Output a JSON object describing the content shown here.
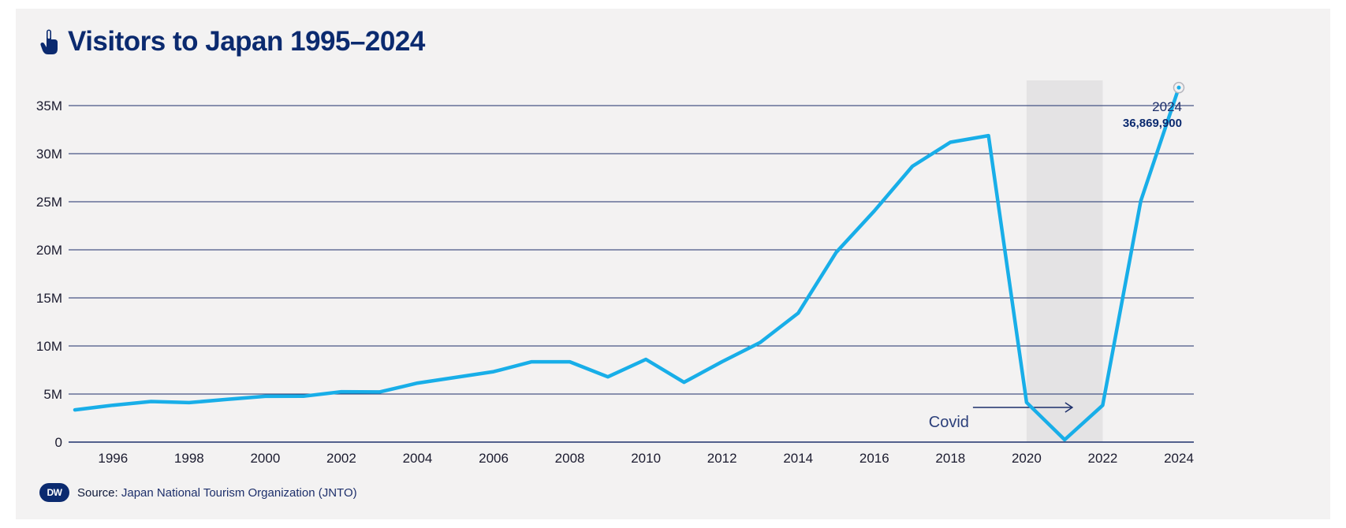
{
  "title": "Visitors to Japan 1995–2024",
  "title_icon": "hand-pointer-icon",
  "colors": {
    "line": "#18aee8",
    "title": "#0b2a6f",
    "grid": "#1d2f6b",
    "shade": "#e4e3e4",
    "background": "#f3f2f2"
  },
  "chart_data": {
    "type": "line",
    "title": "Visitors to Japan 1995–2024",
    "xlabel": "",
    "ylabel": "",
    "x": [
      1995,
      1996,
      1997,
      1998,
      1999,
      2000,
      2001,
      2002,
      2003,
      2004,
      2005,
      2006,
      2007,
      2008,
      2009,
      2010,
      2011,
      2012,
      2013,
      2014,
      2015,
      2016,
      2017,
      2018,
      2019,
      2020,
      2021,
      2022,
      2023,
      2024
    ],
    "series": [
      {
        "name": "Visitors",
        "values": [
          3350000,
          3840000,
          4220000,
          4110000,
          4440000,
          4760000,
          4770000,
          5240000,
          5210000,
          6140000,
          6730000,
          7330000,
          8350000,
          8350000,
          6790000,
          8610000,
          6220000,
          8360000,
          10360000,
          13410000,
          19740000,
          24040000,
          28690000,
          31190000,
          31880000,
          4120000,
          250000,
          3830000,
          25070000,
          36869900
        ]
      }
    ],
    "ylim": [
      0,
      35000000
    ],
    "y_ticks": [
      0,
      5000000,
      10000000,
      15000000,
      20000000,
      25000000,
      30000000,
      35000000
    ],
    "y_tick_labels": [
      "0",
      "5M",
      "10M",
      "15M",
      "20M",
      "25M",
      "30M",
      "35M"
    ],
    "x_ticks": [
      1996,
      1998,
      2000,
      2002,
      2004,
      2006,
      2008,
      2010,
      2012,
      2014,
      2016,
      2018,
      2020,
      2022,
      2024
    ],
    "x_tick_labels": [
      "1996",
      "1998",
      "2000",
      "2002",
      "2004",
      "2006",
      "2008",
      "2010",
      "2012",
      "2014",
      "2016",
      "2018",
      "2020",
      "2022",
      "2024"
    ],
    "grid": true,
    "shaded_region": {
      "from": 2020,
      "to": 2022,
      "label": "Covid"
    },
    "annotation": {
      "year": "2024",
      "value": "36,869,900",
      "x": 2024,
      "y": 36869900
    }
  },
  "footer": {
    "logo": "DW",
    "source_label": "Source:",
    "source_value": "Japan National Tourism Organization (JNTO)"
  }
}
